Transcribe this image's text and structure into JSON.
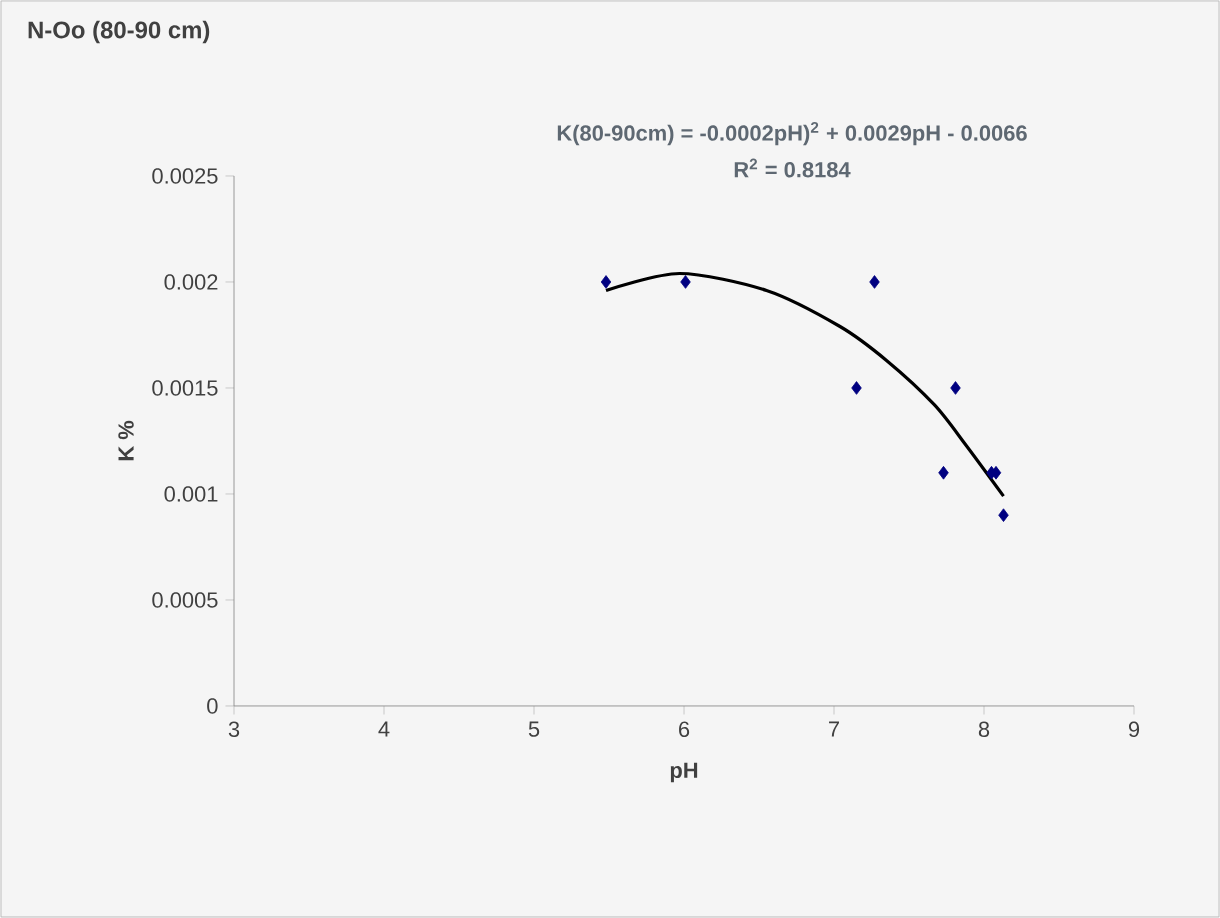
{
  "chart_data": {
    "type": "scatter",
    "title": "N-Oo (80-90 cm)",
    "xlabel": "pH",
    "ylabel": "K %",
    "annotations": [
      "K(80-90cm) = -0.0002pH)$^{2}$ + 0.0029pH - 0.0066",
      "R$^{2}$ = 0.8184"
    ],
    "series": [
      {
        "color": "#000080",
        "marker": "diamond",
        "x": [
          5.48,
          6.01,
          7.15,
          7.27,
          7.73,
          7.81,
          8.05,
          8.08,
          8.13
        ],
        "values": [
          0.002,
          0.002,
          0.0015,
          0.002,
          0.0011,
          0.0015,
          0.0011,
          0.0011,
          0.0009
        ]
      },
      {
        "type": "line",
        "color": "#000000",
        "marker": "none",
        "x": [
          5.48,
          5.97,
          6.55,
          7.04,
          7.35,
          7.67,
          7.88,
          8.13
        ],
        "values": [
          0.00196,
          0.00204,
          0.00196,
          0.00179,
          0.00163,
          0.00142,
          0.00123,
          0.00099
        ]
      }
    ],
    "xlim": [
      3,
      9
    ],
    "xticks": [
      3,
      4,
      5,
      6,
      7,
      8,
      9
    ],
    "ylim": [
      0,
      0.0025
    ],
    "yticks": [
      0,
      0.0005,
      0.001,
      0.0015,
      0.002,
      0.0025
    ],
    "grid": false
  }
}
